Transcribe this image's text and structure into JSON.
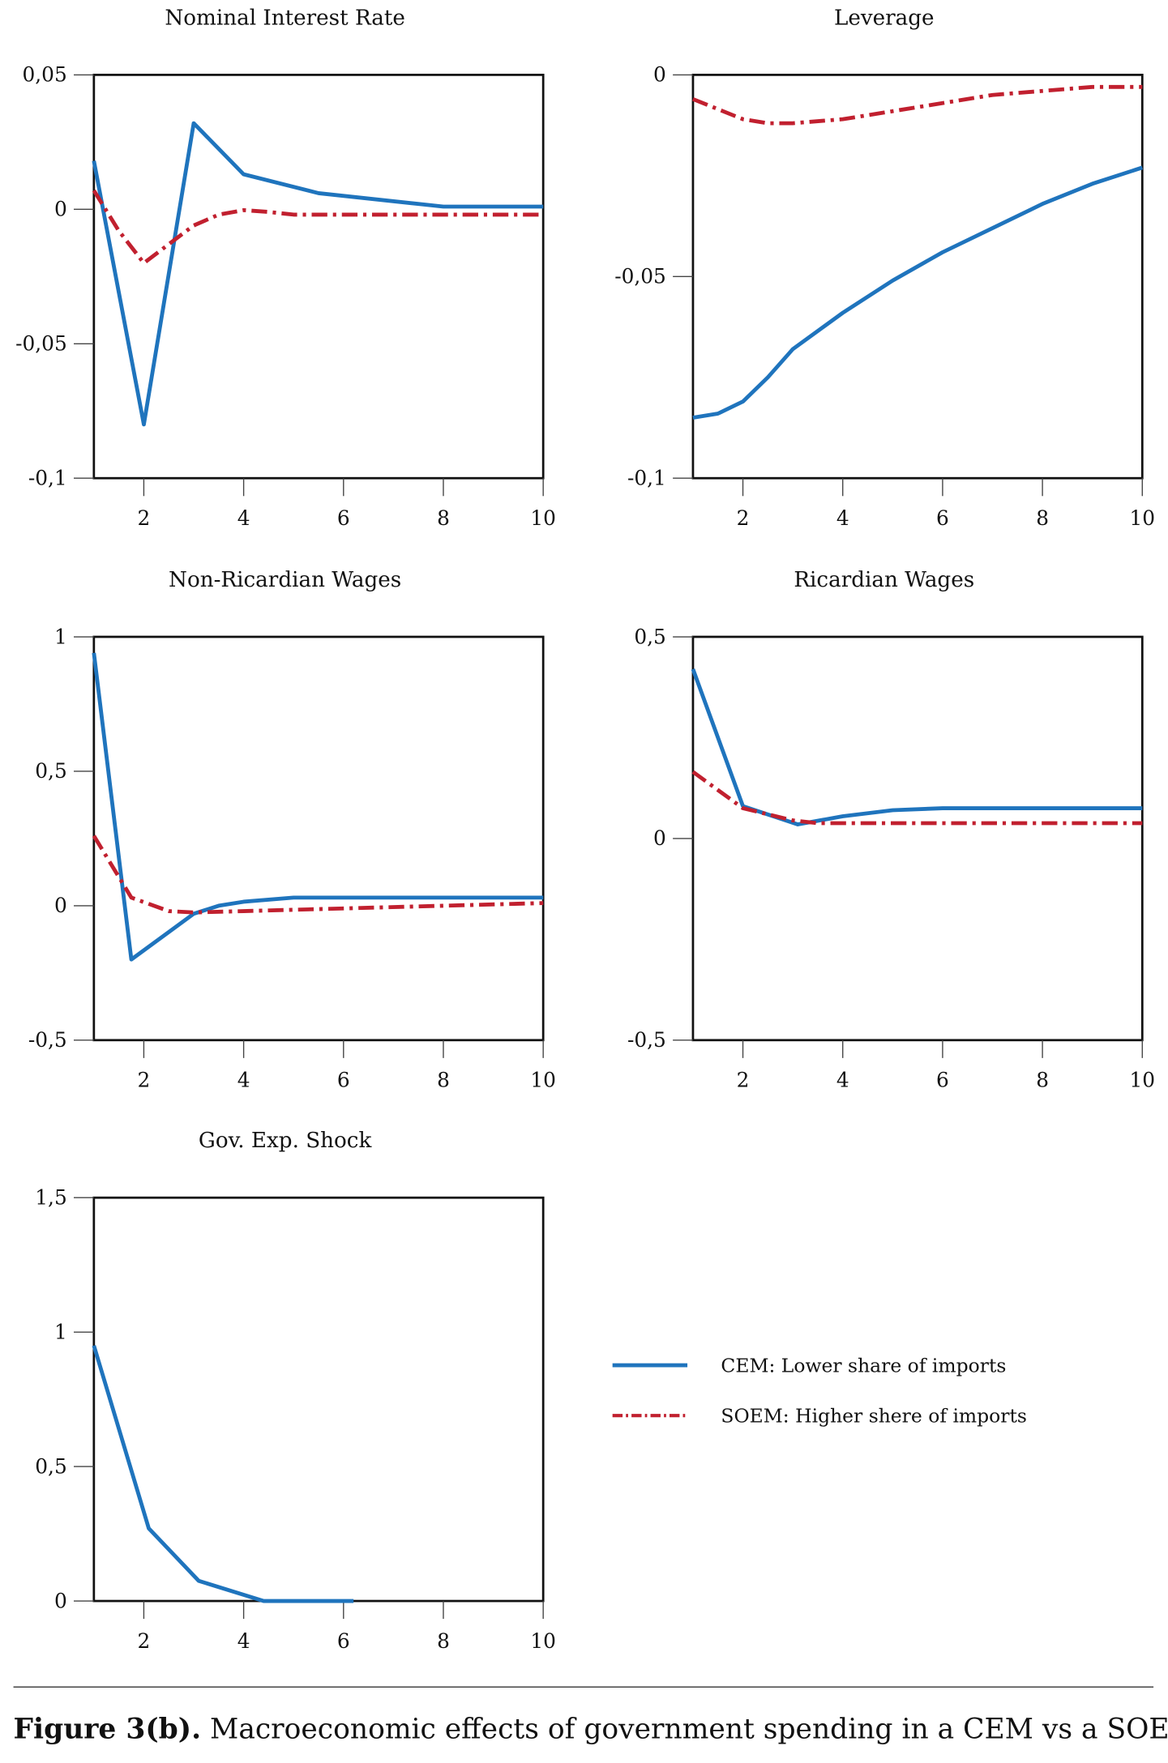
{
  "colors": {
    "cem": "#1f74bd",
    "soem": "#c1202f",
    "axis": "#111111"
  },
  "legend": {
    "cem_label": "CEM: Lower share of imports",
    "soem_label": "SOEM: Higher shere of imports"
  },
  "caption": {
    "bold": "Figure 3(b).",
    "text": " Macroeconomic effects of government spending in a CEM vs a SOEM"
  },
  "chart_data": [
    {
      "type": "line",
      "title": "Nominal Interest Rate",
      "xlim": [
        1,
        10
      ],
      "xticks": [
        2,
        4,
        6,
        8,
        10
      ],
      "xtick_labels": [
        "2",
        "4",
        "6",
        "8",
        "10"
      ],
      "ylim": [
        -0.1,
        0.05
      ],
      "yticks": [
        0.05,
        0,
        -0.05,
        -0.1
      ],
      "ytick_labels": [
        "0,05",
        "0",
        "-0,05",
        "-0,1"
      ],
      "series": [
        {
          "key": "cem",
          "x": [
            1,
            2,
            3,
            4,
            5.5,
            8,
            10
          ],
          "y": [
            0.018,
            -0.08,
            0.032,
            0.013,
            0.006,
            0.001,
            0.001
          ]
        },
        {
          "key": "soem",
          "x": [
            1,
            1.5,
            2,
            2.5,
            3,
            3.5,
            4,
            4.5,
            5,
            6,
            8,
            10
          ],
          "y": [
            0.007,
            -0.008,
            -0.02,
            -0.013,
            -0.006,
            -0.002,
            -0.0003,
            -0.001,
            -0.002,
            -0.002,
            -0.002,
            -0.002
          ]
        }
      ]
    },
    {
      "type": "line",
      "title": "Leverage",
      "xlim": [
        1,
        10
      ],
      "xticks": [
        2,
        4,
        6,
        8,
        10
      ],
      "xtick_labels": [
        "2",
        "4",
        "6",
        "8",
        "10"
      ],
      "ylim": [
        -0.1,
        0
      ],
      "yticks": [
        0,
        -0.05,
        -0.1
      ],
      "ytick_labels": [
        "0",
        "-0,05",
        "-0,1"
      ],
      "series": [
        {
          "key": "cem",
          "x": [
            1,
            1.5,
            2,
            2.5,
            3,
            4,
            5,
            6,
            7,
            8,
            9,
            10
          ],
          "y": [
            -0.085,
            -0.084,
            -0.081,
            -0.075,
            -0.068,
            -0.059,
            -0.051,
            -0.044,
            -0.038,
            -0.032,
            -0.027,
            -0.023
          ]
        },
        {
          "key": "soem",
          "x": [
            1,
            2,
            2.5,
            3,
            4,
            5,
            6,
            7,
            8,
            9,
            10
          ],
          "y": [
            -0.006,
            -0.011,
            -0.012,
            -0.012,
            -0.011,
            -0.009,
            -0.007,
            -0.005,
            -0.004,
            -0.003,
            -0.003
          ]
        }
      ]
    },
    {
      "type": "line",
      "title": "Non-Ricardian Wages",
      "xlim": [
        1,
        10
      ],
      "xticks": [
        2,
        4,
        6,
        8,
        10
      ],
      "xtick_labels": [
        "2",
        "4",
        "6",
        "8",
        "10"
      ],
      "ylim": [
        -0.5,
        1
      ],
      "yticks": [
        1,
        0.5,
        0,
        -0.5
      ],
      "ytick_labels": [
        "1",
        "0,5",
        "0",
        "-0,5"
      ],
      "series": [
        {
          "key": "cem",
          "x": [
            1,
            1.75,
            3,
            3.5,
            4,
            5,
            10
          ],
          "y": [
            0.94,
            -0.2,
            -0.03,
            0,
            0.015,
            0.03,
            0.03
          ]
        },
        {
          "key": "soem",
          "x": [
            1,
            1.75,
            2.5,
            3,
            4,
            6,
            10
          ],
          "y": [
            0.26,
            0.03,
            -0.02,
            -0.025,
            -0.02,
            -0.01,
            0.01
          ]
        }
      ]
    },
    {
      "type": "line",
      "title": "Ricardian Wages",
      "xlim": [
        1,
        10
      ],
      "xticks": [
        2,
        4,
        6,
        8,
        10
      ],
      "xtick_labels": [
        "2",
        "4",
        "6",
        "8",
        "10"
      ],
      "ylim": [
        -0.5,
        0.5
      ],
      "yticks": [
        0.5,
        0,
        -0.5
      ],
      "ytick_labels": [
        "0,5",
        "0",
        "-0,5"
      ],
      "series": [
        {
          "key": "cem",
          "x": [
            1,
            2,
            3.1,
            4,
            5,
            6,
            10
          ],
          "y": [
            0.42,
            0.08,
            0.035,
            0.055,
            0.07,
            0.075,
            0.075
          ]
        },
        {
          "key": "soem",
          "x": [
            1,
            2,
            3,
            3.5,
            10
          ],
          "y": [
            0.165,
            0.075,
            0.045,
            0.038,
            0.038
          ]
        }
      ]
    },
    {
      "type": "line",
      "title": "Gov. Exp. Shock",
      "xlim": [
        1,
        10
      ],
      "xticks": [
        2,
        4,
        6,
        8,
        10
      ],
      "xtick_labels": [
        "2",
        "4",
        "6",
        "8",
        "10"
      ],
      "ylim": [
        0,
        1.5
      ],
      "yticks": [
        1.5,
        1,
        0.5,
        0
      ],
      "ytick_labels": [
        "1,5",
        "1",
        "0,5",
        "0"
      ],
      "series": [
        {
          "key": "cem",
          "x": [
            1,
            2.1,
            3.1,
            4.4,
            6.2
          ],
          "y": [
            0.95,
            0.27,
            0.075,
            0,
            0
          ]
        }
      ]
    }
  ]
}
